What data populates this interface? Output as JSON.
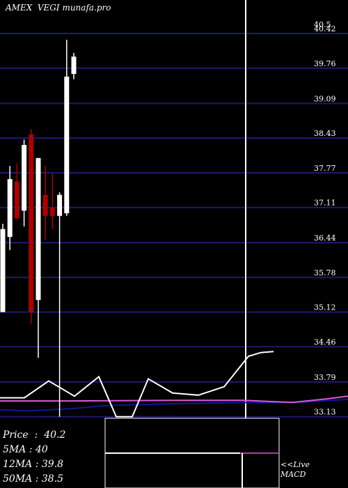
{
  "header": {
    "title": "AMEX  VEGI munafa.pro"
  },
  "legend": [
    {
      "label": "Price",
      "value": "40.2"
    },
    {
      "label": "5MA",
      "value": "40"
    },
    {
      "label": "12MA",
      "value": "39.8"
    },
    {
      "label": "50MA",
      "value": "38.5"
    }
  ],
  "macd_note": {
    "line1": "<<Live",
    "line2": "MACD"
  },
  "colors": {
    "background": "#000000",
    "gridline": "#1c1c6e",
    "up_candle": "#ffffff",
    "down_candle": "#b00000",
    "indicator_line": "#ffffff",
    "ma_pink": "#d95ad9",
    "ma_blue": "#1414a0"
  },
  "chart_data": {
    "type": "candlestick",
    "ylim": [
      33.13,
      40.5
    ],
    "y_ticks": [
      "40.5",
      "40.42",
      "39.76",
      "39.09",
      "38.43",
      "37.77",
      "37.11",
      "36.44",
      "35.78",
      "35.12",
      "34.46",
      "33.79",
      "33.13"
    ],
    "candles": [
      {
        "open": 35.12,
        "high": 36.8,
        "low": 35.12,
        "close": 36.7,
        "dir": "up"
      },
      {
        "open": 36.55,
        "high": 37.9,
        "low": 36.3,
        "close": 37.65,
        "dir": "up"
      },
      {
        "open": 37.6,
        "high": 37.95,
        "low": 36.9,
        "close": 36.9,
        "dir": "down"
      },
      {
        "open": 37.05,
        "high": 38.4,
        "low": 36.75,
        "close": 38.3,
        "dir": "up"
      },
      {
        "open": 38.5,
        "high": 38.6,
        "low": 34.9,
        "close": 35.12,
        "dir": "down"
      },
      {
        "open": 35.35,
        "high": 38.05,
        "low": 34.25,
        "close": 38.05,
        "dir": "up"
      },
      {
        "open": 37.35,
        "high": 37.9,
        "low": 36.5,
        "close": 36.95,
        "dir": "down"
      },
      {
        "open": 37.1,
        "high": 37.75,
        "low": 36.7,
        "close": 36.95,
        "dir": "down"
      },
      {
        "open": 36.95,
        "high": 37.4,
        "low": 33.13,
        "close": 37.35,
        "dir": "up"
      },
      {
        "open": 37.0,
        "high": 40.3,
        "low": 36.95,
        "close": 39.6,
        "dir": "up"
      },
      {
        "open": 39.65,
        "high": 40.05,
        "low": 39.55,
        "close": 39.98,
        "dir": "up"
      }
    ],
    "indicator_line": [
      {
        "x": 0,
        "y": 33.49
      },
      {
        "x": 35,
        "y": 33.49
      },
      {
        "x": 70,
        "y": 33.81
      },
      {
        "x": 107,
        "y": 33.52
      },
      {
        "x": 142,
        "y": 33.89
      },
      {
        "x": 167,
        "y": 33.13
      },
      {
        "x": 190,
        "y": 33.13
      },
      {
        "x": 213,
        "y": 33.85
      },
      {
        "x": 248,
        "y": 33.58
      },
      {
        "x": 285,
        "y": 33.54
      },
      {
        "x": 322,
        "y": 33.7
      },
      {
        "x": 357,
        "y": 34.28
      },
      {
        "x": 375,
        "y": 34.35
      },
      {
        "x": 393,
        "y": 34.37
      }
    ],
    "ma_pink": [
      {
        "x": 0,
        "y": 33.43
      },
      {
        "x": 100,
        "y": 33.43
      },
      {
        "x": 250,
        "y": 33.44
      },
      {
        "x": 350,
        "y": 33.44
      },
      {
        "x": 420,
        "y": 33.4
      },
      {
        "x": 470,
        "y": 33.47
      },
      {
        "x": 500,
        "y": 33.52
      }
    ],
    "ma_blue": [
      {
        "x": 0,
        "y": 33.26
      },
      {
        "x": 40,
        "y": 33.24
      },
      {
        "x": 100,
        "y": 33.28
      },
      {
        "x": 150,
        "y": 33.34
      },
      {
        "x": 230,
        "y": 33.37
      },
      {
        "x": 300,
        "y": 33.39
      },
      {
        "x": 380,
        "y": 33.4
      },
      {
        "x": 440,
        "y": 33.41
      },
      {
        "x": 500,
        "y": 33.46
      }
    ]
  }
}
